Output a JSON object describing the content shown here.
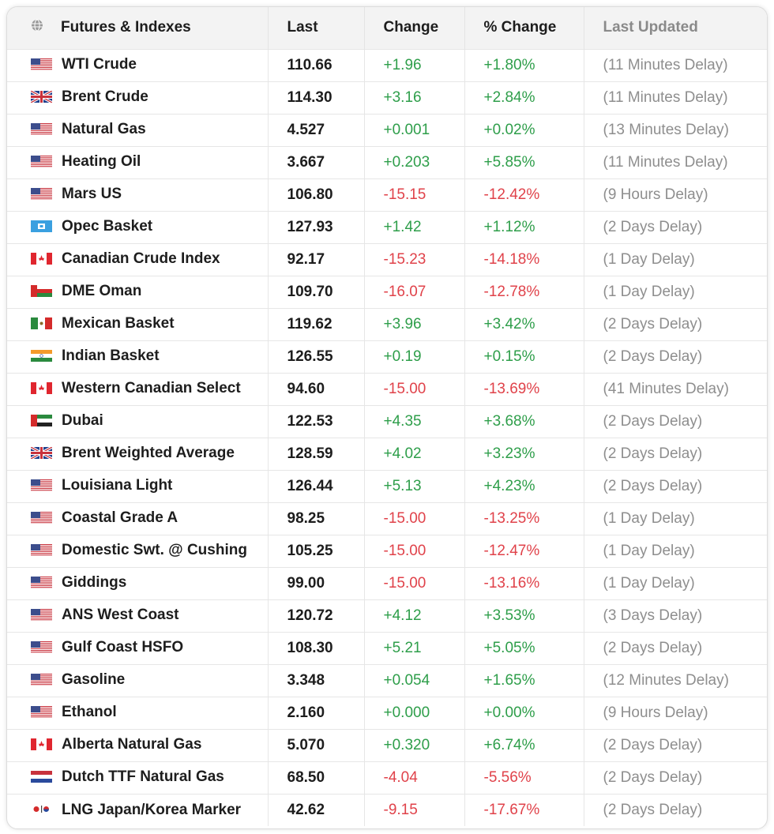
{
  "headers": {
    "name": "Futures & Indexes",
    "last": "Last",
    "change": "Change",
    "pct_change": "% Change",
    "updated": "Last Updated"
  },
  "rows": [
    {
      "flag": "us-flag-icon",
      "name": "WTI Crude",
      "last": "110.66",
      "change": "+1.96",
      "pct": "+1.80%",
      "updated": "(11 Minutes Delay)",
      "dir": "pos"
    },
    {
      "flag": "uk-flag-icon",
      "name": "Brent Crude",
      "last": "114.30",
      "change": "+3.16",
      "pct": "+2.84%",
      "updated": "(11 Minutes Delay)",
      "dir": "pos"
    },
    {
      "flag": "us-flag-icon",
      "name": "Natural Gas",
      "last": "4.527",
      "change": "+0.001",
      "pct": "+0.02%",
      "updated": "(13 Minutes Delay)",
      "dir": "pos"
    },
    {
      "flag": "us-flag-icon",
      "name": "Heating Oil",
      "last": "3.667",
      "change": "+0.203",
      "pct": "+5.85%",
      "updated": "(11 Minutes Delay)",
      "dir": "pos"
    },
    {
      "flag": "us-flag-icon",
      "name": "Mars US",
      "last": "106.80",
      "change": "-15.15",
      "pct": "-12.42%",
      "updated": "(9 Hours Delay)",
      "dir": "neg"
    },
    {
      "flag": "opec-flag-icon",
      "name": "Opec Basket",
      "last": "127.93",
      "change": "+1.42",
      "pct": "+1.12%",
      "updated": "(2 Days Delay)",
      "dir": "pos"
    },
    {
      "flag": "canada-flag-icon",
      "name": "Canadian Crude Index",
      "last": "92.17",
      "change": "-15.23",
      "pct": "-14.18%",
      "updated": "(1 Day Delay)",
      "dir": "neg"
    },
    {
      "flag": "oman-flag-icon",
      "name": "DME Oman",
      "last": "109.70",
      "change": "-16.07",
      "pct": "-12.78%",
      "updated": "(1 Day Delay)",
      "dir": "neg"
    },
    {
      "flag": "mexico-flag-icon",
      "name": "Mexican Basket",
      "last": "119.62",
      "change": "+3.96",
      "pct": "+3.42%",
      "updated": "(2 Days Delay)",
      "dir": "pos"
    },
    {
      "flag": "india-flag-icon",
      "name": "Indian Basket",
      "last": "126.55",
      "change": "+0.19",
      "pct": "+0.15%",
      "updated": "(2 Days Delay)",
      "dir": "pos"
    },
    {
      "flag": "canada-flag-icon",
      "name": "Western Canadian Select",
      "last": "94.60",
      "change": "-15.00",
      "pct": "-13.69%",
      "updated": "(41 Minutes Delay)",
      "dir": "neg"
    },
    {
      "flag": "uae-flag-icon",
      "name": "Dubai",
      "last": "122.53",
      "change": "+4.35",
      "pct": "+3.68%",
      "updated": "(2 Days Delay)",
      "dir": "pos"
    },
    {
      "flag": "uk-flag-icon",
      "name": "Brent Weighted Average",
      "last": "128.59",
      "change": "+4.02",
      "pct": "+3.23%",
      "updated": "(2 Days Delay)",
      "dir": "pos"
    },
    {
      "flag": "us-flag-icon",
      "name": "Louisiana Light",
      "last": "126.44",
      "change": "+5.13",
      "pct": "+4.23%",
      "updated": "(2 Days Delay)",
      "dir": "pos"
    },
    {
      "flag": "us-flag-icon",
      "name": "Coastal Grade A",
      "last": "98.25",
      "change": "-15.00",
      "pct": "-13.25%",
      "updated": "(1 Day Delay)",
      "dir": "neg"
    },
    {
      "flag": "us-flag-icon",
      "name": "Domestic Swt. @ Cushing",
      "last": "105.25",
      "change": "-15.00",
      "pct": "-12.47%",
      "updated": "(1 Day Delay)",
      "dir": "neg"
    },
    {
      "flag": "us-flag-icon",
      "name": "Giddings",
      "last": "99.00",
      "change": "-15.00",
      "pct": "-13.16%",
      "updated": "(1 Day Delay)",
      "dir": "neg"
    },
    {
      "flag": "us-flag-icon",
      "name": "ANS West Coast",
      "last": "120.72",
      "change": "+4.12",
      "pct": "+3.53%",
      "updated": "(3 Days Delay)",
      "dir": "pos"
    },
    {
      "flag": "us-flag-icon",
      "name": "Gulf Coast HSFO",
      "last": "108.30",
      "change": "+5.21",
      "pct": "+5.05%",
      "updated": "(2 Days Delay)",
      "dir": "pos"
    },
    {
      "flag": "us-flag-icon",
      "name": "Gasoline",
      "last": "3.348",
      "change": "+0.054",
      "pct": "+1.65%",
      "updated": "(12 Minutes Delay)",
      "dir": "pos"
    },
    {
      "flag": "us-flag-icon",
      "name": "Ethanol",
      "last": "2.160",
      "change": "+0.000",
      "pct": "+0.00%",
      "updated": "(9 Hours Delay)",
      "dir": "pos"
    },
    {
      "flag": "canada-flag-icon",
      "name": "Alberta Natural Gas",
      "last": "5.070",
      "change": "+0.320",
      "pct": "+6.74%",
      "updated": "(2 Days Delay)",
      "dir": "pos"
    },
    {
      "flag": "netherlands-flag-icon",
      "name": "Dutch TTF Natural Gas",
      "last": "68.50",
      "change": "-4.04",
      "pct": "-5.56%",
      "updated": "(2 Days Delay)",
      "dir": "neg"
    },
    {
      "flag": "japan-korea-flag-icon",
      "name": "LNG Japan/Korea Marker",
      "last": "42.62",
      "change": "-9.15",
      "pct": "-17.67%",
      "updated": "(2 Days Delay)",
      "dir": "neg"
    }
  ],
  "colors": {
    "positive": "#2e9e4a",
    "negative": "#e0424a",
    "header_bg": "#f3f3f3",
    "muted": "#8e8e8e"
  },
  "icons": {
    "header": "globe-icon"
  }
}
